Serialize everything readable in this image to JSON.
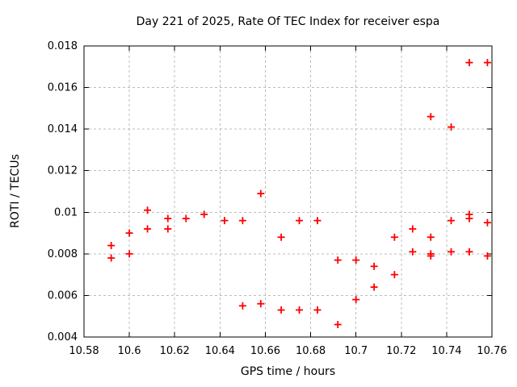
{
  "chart_data": {
    "type": "scatter",
    "title": "Day 221 of 2025, Rate Of TEC Index for receiver espa",
    "xlabel": "GPS time / hours",
    "ylabel": "ROTI / TECUs",
    "xlim": [
      10.58,
      10.76
    ],
    "ylim": [
      0.004,
      0.018
    ],
    "grid": true,
    "legend": false,
    "x_ticks": [
      {
        "v": 10.58,
        "label": "10.58"
      },
      {
        "v": 10.6,
        "label": "10.6"
      },
      {
        "v": 10.62,
        "label": "10.62"
      },
      {
        "v": 10.64,
        "label": "10.64"
      },
      {
        "v": 10.66,
        "label": "10.66"
      },
      {
        "v": 10.68,
        "label": "10.68"
      },
      {
        "v": 10.7,
        "label": "10.7"
      },
      {
        "v": 10.72,
        "label": "10.72"
      },
      {
        "v": 10.74,
        "label": "10.74"
      },
      {
        "v": 10.76,
        "label": "10.76"
      }
    ],
    "y_ticks": [
      {
        "v": 0.004,
        "label": "0.004"
      },
      {
        "v": 0.006,
        "label": "0.006"
      },
      {
        "v": 0.008,
        "label": "0.008"
      },
      {
        "v": 0.01,
        "label": "0.01"
      },
      {
        "v": 0.012,
        "label": "0.012"
      },
      {
        "v": 0.014,
        "label": "0.014"
      },
      {
        "v": 0.016,
        "label": "0.016"
      },
      {
        "v": 0.018,
        "label": "0.018"
      }
    ],
    "marker": {
      "shape": "plus",
      "color": "#ff0000",
      "size": 9
    },
    "grid_color": "#bcbcbc",
    "border_color": "#000000",
    "background": "#ffffff",
    "series": [
      {
        "name": "ROTI",
        "points": [
          [
            10.592,
            0.0084
          ],
          [
            10.592,
            0.0078
          ],
          [
            10.6,
            0.009
          ],
          [
            10.6,
            0.008
          ],
          [
            10.608,
            0.0101
          ],
          [
            10.608,
            0.0092
          ],
          [
            10.617,
            0.0097
          ],
          [
            10.617,
            0.0092
          ],
          [
            10.625,
            0.0097
          ],
          [
            10.633,
            0.0099
          ],
          [
            10.642,
            0.0096
          ],
          [
            10.65,
            0.0096
          ],
          [
            10.65,
            0.0055
          ],
          [
            10.658,
            0.0109
          ],
          [
            10.658,
            0.0056
          ],
          [
            10.667,
            0.0088
          ],
          [
            10.667,
            0.0053
          ],
          [
            10.675,
            0.0096
          ],
          [
            10.675,
            0.0053
          ],
          [
            10.683,
            0.0096
          ],
          [
            10.683,
            0.0053
          ],
          [
            10.692,
            0.0077
          ],
          [
            10.692,
            0.0046
          ],
          [
            10.7,
            0.0077
          ],
          [
            10.7,
            0.0058
          ],
          [
            10.708,
            0.0074
          ],
          [
            10.708,
            0.0064
          ],
          [
            10.717,
            0.0088
          ],
          [
            10.717,
            0.007
          ],
          [
            10.725,
            0.0092
          ],
          [
            10.725,
            0.0081
          ],
          [
            10.733,
            0.0146
          ],
          [
            10.733,
            0.0088
          ],
          [
            10.733,
            0.008
          ],
          [
            10.733,
            0.0079
          ],
          [
            10.742,
            0.0141
          ],
          [
            10.742,
            0.0096
          ],
          [
            10.742,
            0.0081
          ],
          [
            10.75,
            0.0172
          ],
          [
            10.75,
            0.0099
          ],
          [
            10.75,
            0.0097
          ],
          [
            10.75,
            0.0081
          ],
          [
            10.758,
            0.0172
          ],
          [
            10.758,
            0.0095
          ],
          [
            10.758,
            0.0079
          ]
        ]
      }
    ]
  }
}
